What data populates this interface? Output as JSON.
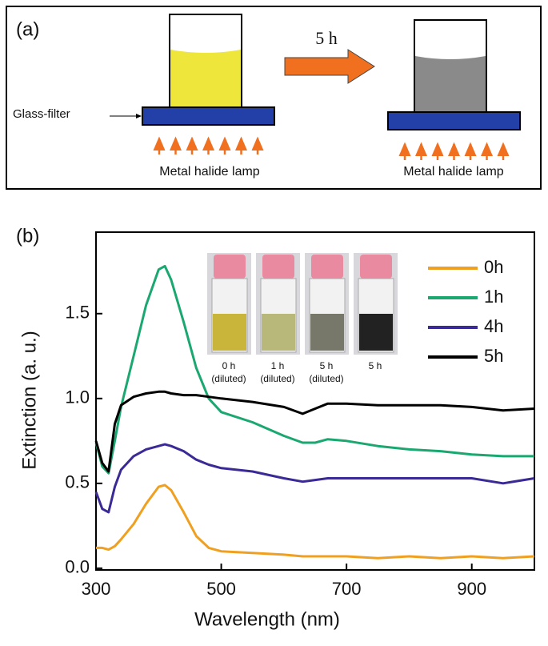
{
  "panel_a": {
    "label": "(a)",
    "arrow_label": "5 h",
    "filter_label": "Glass-filter",
    "lamp_labels": [
      "Metal halide lamp",
      "Metal halide lamp"
    ]
  },
  "chart_data": {
    "type": "line",
    "panel_label": "(b)",
    "x_label": "Wavelength (nm)",
    "y_label": "Extinction (a. u.)",
    "x": [
      300,
      310,
      320,
      330,
      340,
      360,
      380,
      400,
      410,
      420,
      440,
      460,
      480,
      500,
      550,
      600,
      630,
      650,
      670,
      700,
      750,
      800,
      850,
      900,
      950,
      1000
    ],
    "series": [
      {
        "name": "0h",
        "color": "#f0a020",
        "values": [
          0.12,
          0.12,
          0.11,
          0.13,
          0.17,
          0.26,
          0.38,
          0.48,
          0.49,
          0.46,
          0.33,
          0.19,
          0.12,
          0.1,
          0.09,
          0.08,
          0.07,
          0.07,
          0.07,
          0.07,
          0.06,
          0.07,
          0.06,
          0.07,
          0.06,
          0.07
        ]
      },
      {
        "name": "1h",
        "color": "#1aa870",
        "values": [
          0.74,
          0.6,
          0.56,
          0.75,
          0.95,
          1.25,
          1.55,
          1.76,
          1.78,
          1.7,
          1.45,
          1.18,
          1.0,
          0.92,
          0.86,
          0.78,
          0.74,
          0.74,
          0.76,
          0.75,
          0.72,
          0.7,
          0.69,
          0.67,
          0.66,
          0.66
        ]
      },
      {
        "name": "4h",
        "color": "#3a2a96",
        "values": [
          0.45,
          0.35,
          0.33,
          0.48,
          0.58,
          0.66,
          0.7,
          0.72,
          0.73,
          0.72,
          0.69,
          0.64,
          0.61,
          0.59,
          0.57,
          0.53,
          0.51,
          0.52,
          0.53,
          0.53,
          0.53,
          0.53,
          0.53,
          0.53,
          0.5,
          0.53
        ]
      },
      {
        "name": "5h",
        "color": "#000000",
        "values": [
          0.75,
          0.62,
          0.57,
          0.85,
          0.96,
          1.01,
          1.03,
          1.04,
          1.04,
          1.03,
          1.02,
          1.02,
          1.01,
          1.0,
          0.98,
          0.95,
          0.91,
          0.94,
          0.97,
          0.97,
          0.96,
          0.96,
          0.96,
          0.95,
          0.93,
          0.94
        ]
      }
    ],
    "xlim": [
      300,
      1000
    ],
    "xticks": [
      300,
      500,
      700,
      900
    ],
    "ylim": [
      -0.01,
      1.98
    ],
    "yticks": [
      {
        "value": 0,
        "label": "0.0"
      },
      {
        "value": 0.5,
        "label": "0.5"
      },
      {
        "value": 1.0,
        "label": "1.0"
      },
      {
        "value": 1.5,
        "label": "1.5"
      }
    ],
    "legend": "upper right",
    "inset_labels": [
      [
        "0 h",
        "(diluted)"
      ],
      [
        "1 h",
        "(diluted)"
      ],
      [
        "5 h",
        "(diluted)"
      ],
      [
        "5 h"
      ]
    ]
  }
}
